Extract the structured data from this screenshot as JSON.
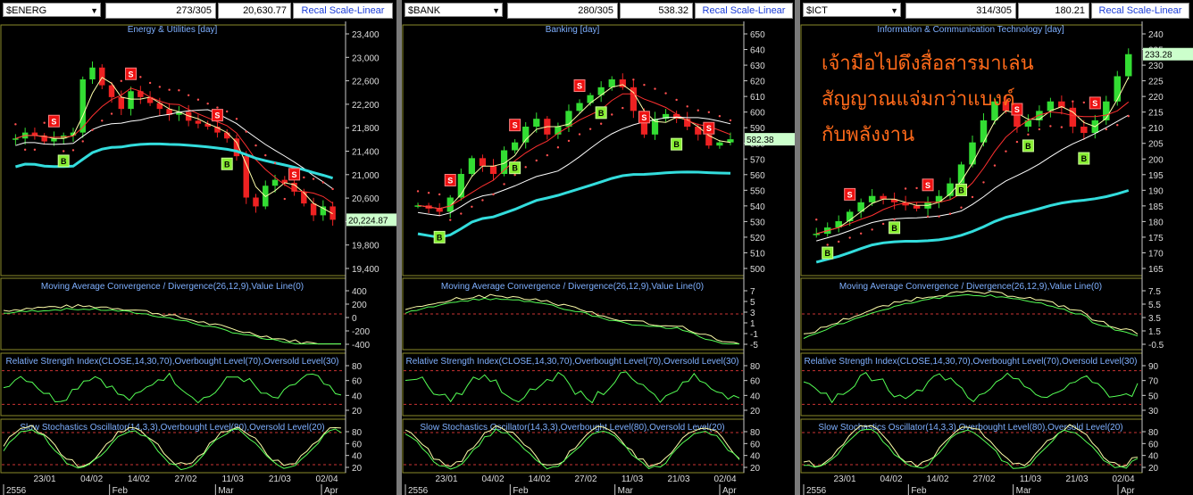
{
  "panels": [
    {
      "symbol": "$ENERG",
      "count": "273/305",
      "price": "20,630.77",
      "recal": "Recal Scale-Linear",
      "title": "Energy & Utilities [day]",
      "last_label": "20,224.87",
      "overlay_text": [],
      "price_ticks": [
        "23,400",
        "23,000",
        "22,600",
        "22,200",
        "21,800",
        "21,400",
        "21,000",
        "20,600",
        "20,200",
        "19,800",
        "19,400"
      ],
      "macd_title": "Moving Average Convergence / Divergence(26,12,9),Value Line(0)",
      "macd_ticks": [
        "400",
        "200",
        "0",
        "-200",
        "-400"
      ],
      "rsi_title": "Relative Strength Index(CLOSE,14,30,70),Overbought Level(70),Oversold Level(30)",
      "rsi_ticks": [
        "80",
        "60",
        "40",
        "20"
      ],
      "stoch_title": "Slow Stochastics Oscillator(14,3,3),Overbought Level(80),Oversold Level(20)",
      "stoch_ticks": [
        "80",
        "60",
        "40",
        "20"
      ],
      "date_ticks": [
        "23/01",
        "04/02",
        "14/02",
        "27/02",
        "11/03",
        "21/03",
        "02/04"
      ],
      "month_labels": [
        "2556",
        "Feb",
        "Mar",
        "Apr"
      ]
    },
    {
      "symbol": "$BANK",
      "count": "280/305",
      "price": "538.32",
      "recal": "Recal Scale-Linear",
      "title": "Banking [day]",
      "last_label": "582.38",
      "overlay_text": [],
      "price_ticks": [
        "650",
        "640",
        "630",
        "620",
        "610",
        "600",
        "590",
        "580",
        "570",
        "560",
        "550",
        "540",
        "530",
        "520",
        "510",
        "500"
      ],
      "macd_title": "Moving Average Convergence / Divergence(26,12,9),Value Line(0)",
      "macd_ticks": [
        "7",
        "5",
        "3",
        "1",
        "-1",
        "-5"
      ],
      "rsi_title": "Relative Strength Index(CLOSE,14,30,70),Overbought Level(70),Oversold Level(30)",
      "rsi_ticks": [
        "80",
        "60",
        "40",
        "20"
      ],
      "stoch_title": "Slow Stochastics Oscillator(14,3,3),Overbought Level(80),Oversold Level(20)",
      "stoch_ticks": [
        "80",
        "60",
        "40",
        "20"
      ],
      "date_ticks": [
        "23/01",
        "04/02",
        "14/02",
        "27/02",
        "11/03",
        "21/03",
        "02/04"
      ],
      "month_labels": [
        "2556",
        "Feb",
        "Mar",
        "Apr"
      ]
    },
    {
      "symbol": "$ICT",
      "count": "314/305",
      "price": "180.21",
      "recal": "Recal Scale-Linear",
      "title": "Information & Communication Technology [day]",
      "last_label": "233.28",
      "overlay_text": [
        "เจ้ามือไปดึงสื่อสารมาเล่น",
        "สัญญาณแจ่มกว่าแบงค์",
        "กับพลังงาน"
      ],
      "price_ticks": [
        "240",
        "235",
        "230",
        "225",
        "220",
        "215",
        "210",
        "205",
        "200",
        "195",
        "190",
        "185",
        "180",
        "175",
        "170",
        "165"
      ],
      "macd_title": "Moving Average Convergence / Divergence(26,12,9),Value Line(0)",
      "macd_ticks": [
        "7.5",
        "5.5",
        "3.5",
        "1.5",
        "-0.5"
      ],
      "rsi_title": "Relative Strength Index(CLOSE,14,30,70),Overbought Level(70),Oversold Level(30)",
      "rsi_ticks": [
        "90",
        "70",
        "50",
        "30"
      ],
      "stoch_title": "Slow Stochastics Oscillator(14,3,3),Overbought Level(80),Oversold Level(20)",
      "stoch_ticks": [
        "80",
        "60",
        "40",
        "20"
      ],
      "date_ticks": [
        "23/01",
        "04/02",
        "14/02",
        "27/02",
        "11/03",
        "21/03",
        "02/04"
      ],
      "month_labels": [
        "2556",
        "Feb",
        "Mar",
        "Apr"
      ]
    }
  ],
  "chart_data": [
    {
      "type": "line",
      "title": "Energy & Utilities [day]",
      "series": [
        {
          "name": "close",
          "values": [
            21600,
            21700,
            21650,
            21550,
            21600,
            21650,
            21700,
            22600,
            22800,
            22500,
            22300,
            22100,
            22400,
            22300,
            22200,
            22100,
            22000,
            22050,
            21900,
            21850,
            21800,
            21700,
            21600,
            21300,
            20600,
            20450,
            20800,
            20900,
            20850,
            20700,
            20500,
            20300,
            20450,
            20224
          ]
        }
      ],
      "ylim": [
        19400,
        23400
      ],
      "markers": {
        "sell": 4,
        "buy": 2
      }
    },
    {
      "type": "line",
      "title": "Banking [day]",
      "series": [
        {
          "name": "close",
          "values": [
            540,
            538,
            536,
            545,
            560,
            570,
            565,
            560,
            575,
            580,
            590,
            595,
            585,
            590,
            600,
            605,
            610,
            615,
            620,
            615,
            600,
            585,
            595,
            598,
            595,
            590,
            585,
            578,
            580,
            582
          ]
        }
      ],
      "ylim": [
        500,
        650
      ],
      "markers": {
        "sell": 5,
        "buy": 4
      }
    },
    {
      "type": "line",
      "title": "Information & Communication Technology [day]",
      "series": [
        {
          "name": "close",
          "values": [
            176,
            178,
            180,
            183,
            186,
            188,
            187,
            186,
            185,
            184,
            186,
            188,
            192,
            198,
            205,
            212,
            218,
            215,
            210,
            212,
            215,
            218,
            216,
            210,
            208,
            212,
            218,
            226,
            233
          ]
        }
      ],
      "ylim": [
        165,
        240
      ],
      "markers": {
        "sell": 4,
        "buy": 5
      }
    }
  ]
}
